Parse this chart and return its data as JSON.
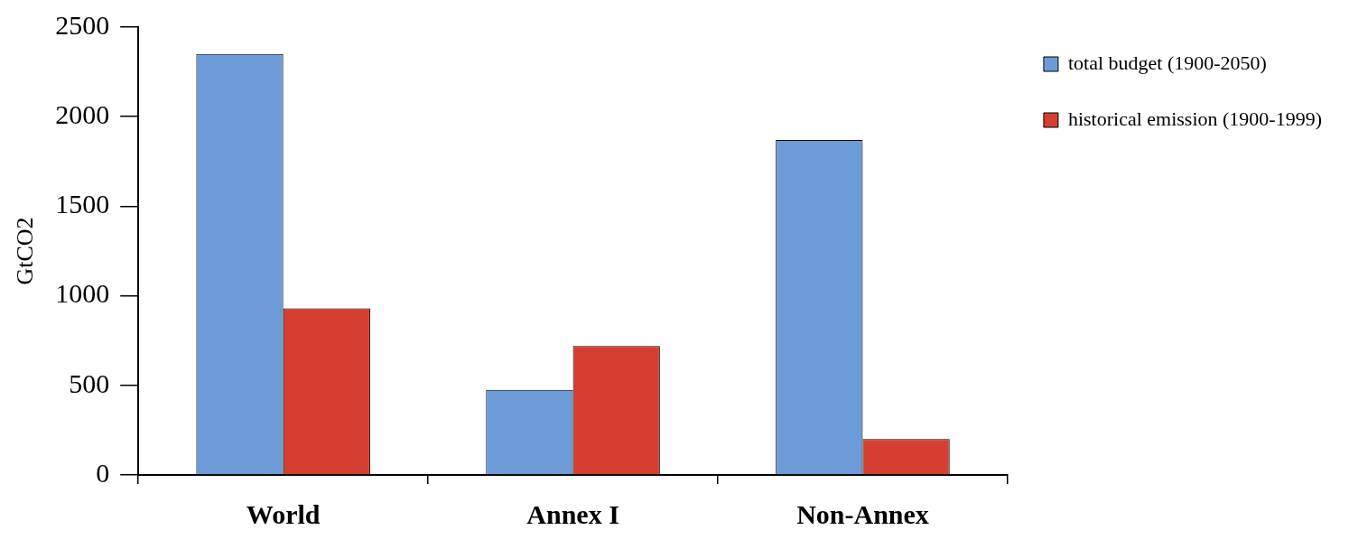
{
  "chart_data": {
    "type": "bar",
    "ylabel": "GtCO2",
    "categories": [
      "World",
      "Annex I",
      "Non-Annex"
    ],
    "series": [
      {
        "name": "total budget (1900-2050)",
        "color": "#6d9bd8",
        "values": [
          2350,
          475,
          1870
        ]
      },
      {
        "name": "historical emission (1900-1999)",
        "color": "#d63e32",
        "values": [
          930,
          720,
          200
        ]
      }
    ],
    "ylim": [
      0,
      2500
    ],
    "yticks": [
      0,
      500,
      1000,
      1500,
      2000,
      2500
    ],
    "grid": false,
    "legend": "top right"
  }
}
